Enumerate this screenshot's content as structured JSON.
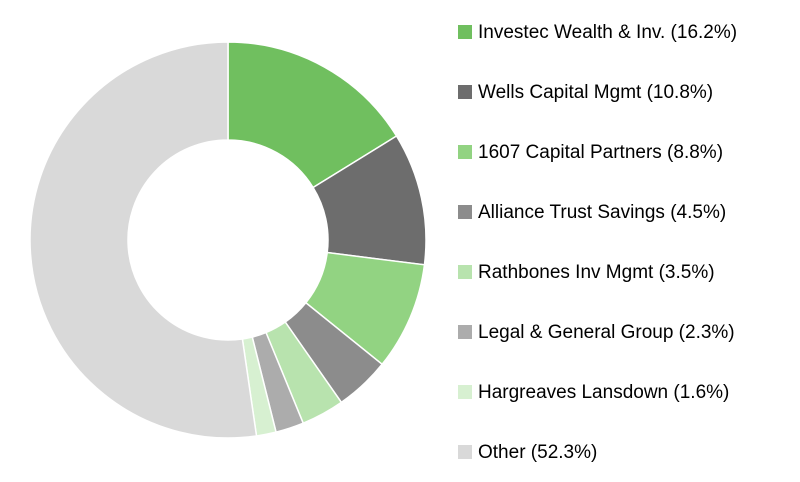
{
  "chart_data": {
    "type": "donut",
    "categories": [
      "Investec Wealth & Inv. (16.2%)",
      "Wells Capital Mgmt (10.8%)",
      "1607 Capital Partners (8.8%)",
      "Alliance Trust Savings (4.5%)",
      "Rathbones Inv Mgmt (3.5%)",
      "Legal & General Group (2.3%)",
      "Hargreaves Lansdown (1.6%)",
      "Other (52.3%)"
    ],
    "values": [
      16.2,
      10.8,
      8.8,
      4.5,
      3.5,
      2.3,
      1.6,
      52.3
    ],
    "colors": [
      "#70bf5f",
      "#6d6d6d",
      "#92d382",
      "#8c8c8c",
      "#b8e3ae",
      "#acacac",
      "#d7f0d1",
      "#d9d9d9"
    ],
    "legend": "right"
  }
}
